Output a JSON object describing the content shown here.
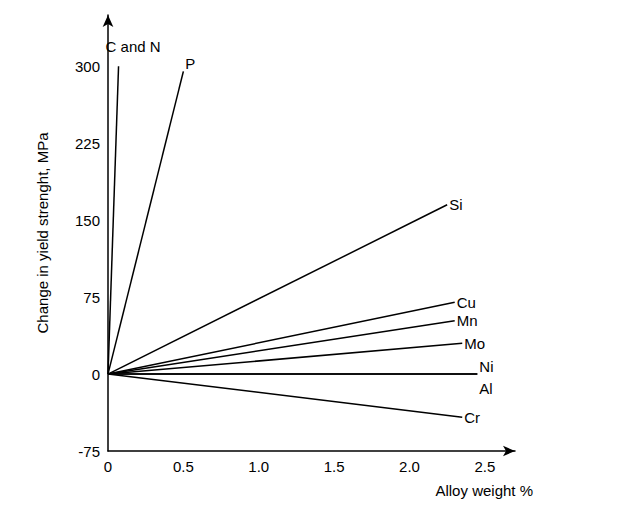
{
  "chart_data": {
    "type": "line",
    "x_label": "Alloy weight %",
    "y_label": "Change in yield strenght, MPa",
    "xlim": [
      0,
      2.7
    ],
    "ylim": [
      -75,
      350
    ],
    "xticks": [
      0,
      0.5,
      {
        "value": 1,
        "label": "1.0"
      },
      1.5,
      {
        "value": 2,
        "label": "2.0"
      },
      2.5
    ],
    "yticks": [
      -75,
      0,
      75,
      150,
      225,
      300
    ],
    "grid": false,
    "marker": "none",
    "series": [
      {
        "name": "C and N",
        "color": "#000000",
        "x": [
          0,
          0.07
        ],
        "values": [
          0,
          300
        ]
      },
      {
        "name": "P",
        "color": "#000000",
        "x": [
          0,
          0.5
        ],
        "values": [
          0,
          295
        ]
      },
      {
        "name": "Si",
        "color": "#000000",
        "x": [
          0,
          2.25
        ],
        "values": [
          0,
          165
        ]
      },
      {
        "name": "Cu",
        "color": "#000000",
        "x": [
          0,
          2.3
        ],
        "values": [
          0,
          70
        ]
      },
      {
        "name": "Mn",
        "color": "#000000",
        "x": [
          0,
          2.3
        ],
        "values": [
          0,
          52
        ]
      },
      {
        "name": "Mo",
        "color": "#000000",
        "x": [
          0,
          2.35
        ],
        "values": [
          0,
          30
        ]
      },
      {
        "name": "Ni",
        "color": "#000000",
        "x": [
          0,
          2.45
        ],
        "values": [
          0,
          0
        ]
      },
      {
        "name": "Al",
        "color": "#000000",
        "x": [
          0,
          2.45
        ],
        "values": [
          0,
          0
        ]
      },
      {
        "name": "Cr",
        "color": "#000000",
        "x": [
          0,
          2.35
        ],
        "values": [
          0,
          -42
        ]
      }
    ]
  }
}
